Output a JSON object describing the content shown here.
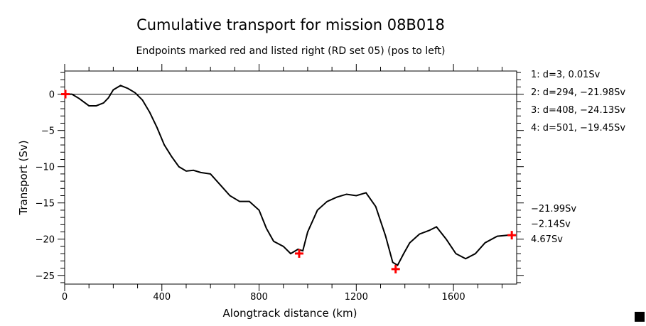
{
  "chart_data": {
    "type": "line",
    "title": "Cumulative transport for mission 08B018",
    "subtitle": "Endpoints marked red and listed right (RD set 05) (pos to left)",
    "xlabel": "Alongtrack distance (km)",
    "ylabel": "Transport (Sv)",
    "xlim": [
      0,
      1860
    ],
    "ylim": [
      -26.2,
      3.2
    ],
    "xticks": [
      0,
      400,
      800,
      1200,
      1600
    ],
    "yticks": [
      0,
      -5,
      -10,
      -15,
      -20,
      -25
    ],
    "grid": false,
    "zero_line": true,
    "line_color": "#000000",
    "marker_color": "#ff0000",
    "series": [
      {
        "name": "cumulative transport",
        "x": [
          0,
          30,
          60,
          100,
          130,
          160,
          180,
          200,
          230,
          260,
          290,
          320,
          350,
          380,
          410,
          440,
          470,
          500,
          530,
          560,
          600,
          640,
          680,
          720,
          760,
          800,
          830,
          860,
          900,
          930,
          960,
          980,
          1000,
          1040,
          1080,
          1120,
          1160,
          1200,
          1240,
          1280,
          1320,
          1350,
          1370,
          1395,
          1420,
          1460,
          1500,
          1530,
          1570,
          1610,
          1650,
          1690,
          1730,
          1780,
          1840
        ],
        "y": [
          0,
          0,
          -0.6,
          -1.6,
          -1.6,
          -1.2,
          -0.5,
          0.6,
          1.2,
          0.8,
          0.2,
          -0.8,
          -2.5,
          -4.6,
          -7,
          -8.6,
          -10,
          -10.6,
          -10.5,
          -10.8,
          -11,
          -12.5,
          -14,
          -14.8,
          -14.8,
          -16,
          -18.5,
          -20.3,
          -21,
          -22,
          -21.4,
          -21.6,
          -19,
          -16,
          -14.8,
          -14.2,
          -13.8,
          -14,
          -13.6,
          -15.5,
          -19.5,
          -23.2,
          -23.6,
          -22,
          -20.5,
          -19.3,
          -18.8,
          -18.3,
          -20,
          -22,
          -22.7,
          -22,
          -20.5,
          -19.6,
          -19.4
        ]
      }
    ],
    "endpoints": [
      {
        "x": 3,
        "y": 0.01
      },
      {
        "x": 965,
        "y": -21.98
      },
      {
        "x": 1362,
        "y": -24.13
      },
      {
        "x": 1840,
        "y": -19.45
      }
    ],
    "endpoint_labels": [
      "1: d=3, 0.01Sv",
      "2: d=294, −21.98Sv",
      "3: d=408, −24.13Sv",
      "4: d=501, −19.45Sv"
    ],
    "summary_labels": [
      "−21.99Sv",
      "−2.14Sv",
      "4.67Sv"
    ]
  }
}
